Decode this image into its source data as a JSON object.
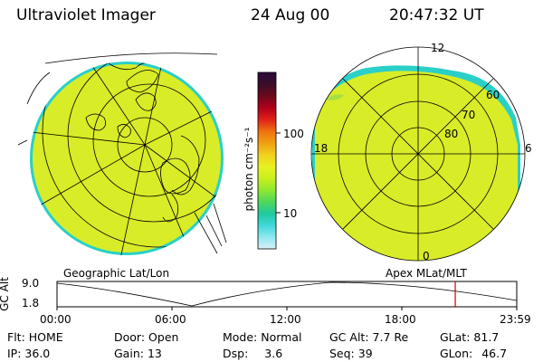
{
  "header": {
    "instrument": "Ultraviolet Imager",
    "date": "24 Aug 00",
    "time": "20:47:32 UT"
  },
  "geo_panel": {
    "caption": "Geographic Lat/Lon"
  },
  "mag_panel": {
    "caption": "Apex MLat/MLT",
    "mlt_labels": {
      "top": "12",
      "left": "18",
      "right": "6",
      "bottom": "0"
    },
    "lat_labels": [
      "60",
      "70",
      "80"
    ]
  },
  "colorbar": {
    "unit_label": "photon cm⁻²s⁻¹",
    "ticks": [
      "100",
      "10"
    ],
    "colors": [
      "#2c0a3a",
      "#3a0d2a",
      "#6a0a1a",
      "#b0001a",
      "#e0201a",
      "#f07010",
      "#f0a010",
      "#f0d020",
      "#e8f020",
      "#c8f020",
      "#90e830",
      "#50d858",
      "#20c8a0",
      "#40d8d8",
      "#90e8f0",
      "#d8f0f8"
    ]
  },
  "orbit": {
    "axis_label": "GC Alt",
    "tick_values": [
      "9.0",
      "1.8"
    ],
    "time_labels": [
      "00:00",
      "06:00",
      "12:00",
      "18:00",
      "23:59"
    ],
    "current_time_hours": 20.79
  },
  "status": {
    "flt_label": "Flt:",
    "flt_value": "HOME",
    "ip_label": "IP:",
    "ip_value": "36.0",
    "door_label": "Door:",
    "door_value": "Open",
    "gain_label": "Gain:",
    "gain_value": "13",
    "mode_label": "Mode:",
    "mode_value": "Normal",
    "dsp_label": "Dsp:",
    "dsp_value": "3.6",
    "gcalt_label": "GC Alt:",
    "gcalt_value": "7.7 Re",
    "seq_label": "Seq:",
    "seq_value": "39",
    "glat_label": "GLat:",
    "glat_value": "81.7",
    "glon_label": "GLon:",
    "glon_value": "46.7"
  }
}
